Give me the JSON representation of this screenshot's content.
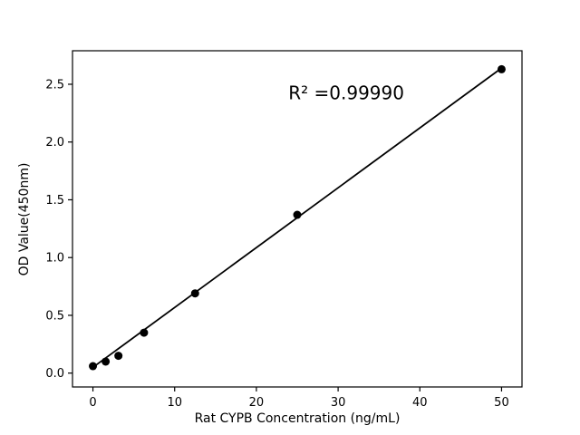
{
  "figure": {
    "background_color": "#ffffff",
    "frame_color": "#000000"
  },
  "chart_data": {
    "type": "scatter",
    "title": "",
    "xlabel": "Rat CYPB Concentration (ng/mL)",
    "ylabel": "OD Value(450nm)",
    "x": [
      0,
      1.56,
      3.12,
      6.25,
      12.5,
      25,
      50
    ],
    "y": [
      0.06,
      0.1,
      0.15,
      0.35,
      0.69,
      1.37,
      2.63
    ],
    "fit_line": {
      "x": [
        0,
        50
      ],
      "y": [
        0.05,
        2.64
      ]
    },
    "r_squared": 0.9999,
    "annotation": {
      "text": "R² =0.99990",
      "x": 31,
      "y": 2.37
    },
    "xlim": [
      -2.5,
      52.5
    ],
    "ylim": [
      -0.12,
      2.79
    ],
    "x_ticks": [
      {
        "v": 0,
        "label": "0"
      },
      {
        "v": 10,
        "label": "10"
      },
      {
        "v": 20,
        "label": "20"
      },
      {
        "v": 30,
        "label": "30"
      },
      {
        "v": 40,
        "label": "40"
      },
      {
        "v": 50,
        "label": "50"
      }
    ],
    "y_ticks": [
      {
        "v": 0.0,
        "label": "0.0"
      },
      {
        "v": 0.5,
        "label": "0.5"
      },
      {
        "v": 1.0,
        "label": "1.0"
      },
      {
        "v": 1.5,
        "label": "1.5"
      },
      {
        "v": 2.0,
        "label": "2.0"
      },
      {
        "v": 2.5,
        "label": "2.5"
      }
    ],
    "grid": false,
    "legend_position": "none",
    "marker_color": "#000000",
    "line_color": "#000000"
  }
}
